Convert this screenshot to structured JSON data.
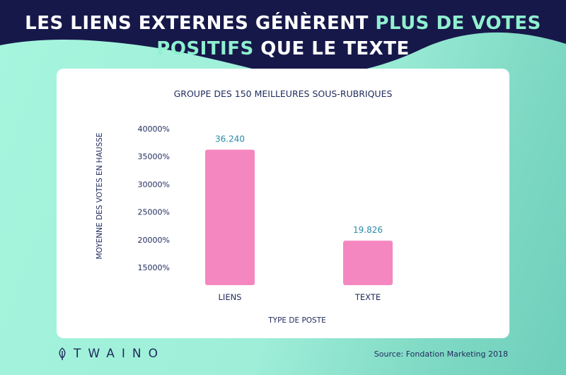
{
  "header": {
    "title_line1_white": "LES LIENS EXTERNES GÉNÈRENT",
    "title_line1_highlight": "PLUS DE VOTES",
    "title_line2_highlight": "POSITIFS",
    "title_line2_white": "QUE LE TEXTE"
  },
  "colors": {
    "navy": "#17184a",
    "highlight": "#8ff0cf",
    "bar": "#f587c0",
    "value_label": "#2a8aa8",
    "text": "#1f2a5c"
  },
  "chart_data": {
    "type": "bar",
    "title": "GROUPE DES 150 MEILLEURES SOUS-RUBRIQUES",
    "xlabel": "TYPE DE POSTE",
    "ylabel": "MOYENNE DES VOTES EN HAUSSE",
    "categories": [
      "LIENS",
      "TEXTE"
    ],
    "values": [
      36240,
      19826
    ],
    "value_labels": [
      "36.240",
      "19.826"
    ],
    "yticks": [
      15000,
      20000,
      25000,
      30000,
      35000,
      40000
    ],
    "ytick_labels": [
      "15000%",
      "20000%",
      "25000%",
      "30000%",
      "35000%",
      "40000%"
    ],
    "grid": false,
    "legend": "none"
  },
  "footer": {
    "brand": "TWAINO",
    "logo_icon": "leaf-icon",
    "source": "Source: Fondation Marketing 2018"
  }
}
